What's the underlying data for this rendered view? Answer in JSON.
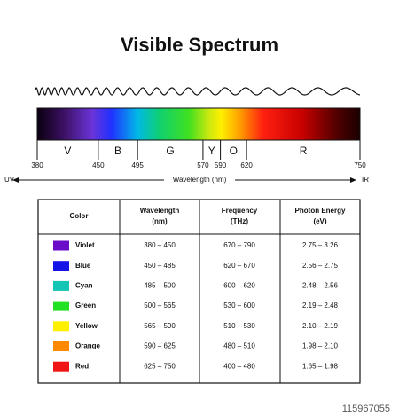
{
  "title": "Visible Spectrum",
  "spectrum": {
    "min": 380,
    "max": 750,
    "ticks": [
      380,
      450,
      495,
      570,
      590,
      620,
      750
    ],
    "bands": [
      "V",
      "B",
      "G",
      "Y",
      "O",
      "R"
    ],
    "axis": {
      "left": "UV",
      "label": "Wavelength (nm)",
      "right": "IR"
    }
  },
  "table": {
    "headers": [
      {
        "title": "Color"
      },
      {
        "title": "Wavelength",
        "unit": "(nm)"
      },
      {
        "title": "Frequency",
        "unit": "(THz)"
      },
      {
        "title": "Photon Energy",
        "unit": "(eV)"
      }
    ],
    "rows": [
      {
        "swatch": "#6a0dc8",
        "cells": [
          "Violet",
          "380 – 450",
          "670 – 790",
          "2.75 – 3.26"
        ]
      },
      {
        "swatch": "#1414e6",
        "cells": [
          "Blue",
          "450 – 485",
          "620 – 670",
          "2.56 – 2.75"
        ]
      },
      {
        "swatch": "#14c4b4",
        "cells": [
          "Cyan",
          "485 – 500",
          "600 – 620",
          "2.48 – 2.56"
        ]
      },
      {
        "swatch": "#22e022",
        "cells": [
          "Green",
          "500 – 565",
          "530 – 600",
          "2.19 – 2.48"
        ]
      },
      {
        "swatch": "#fff000",
        "cells": [
          "Yellow",
          "565 – 590",
          "510 – 530",
          "2.10 – 2.19"
        ]
      },
      {
        "swatch": "#ff8a00",
        "cells": [
          "Orange",
          "590 – 625",
          "480 – 510",
          "1.98 – 2.10"
        ]
      },
      {
        "swatch": "#f01414",
        "cells": [
          "Red",
          "625 – 750",
          "400 – 480",
          "1.65 – 1.98"
        ]
      }
    ]
  },
  "watermark_id": "115967055"
}
